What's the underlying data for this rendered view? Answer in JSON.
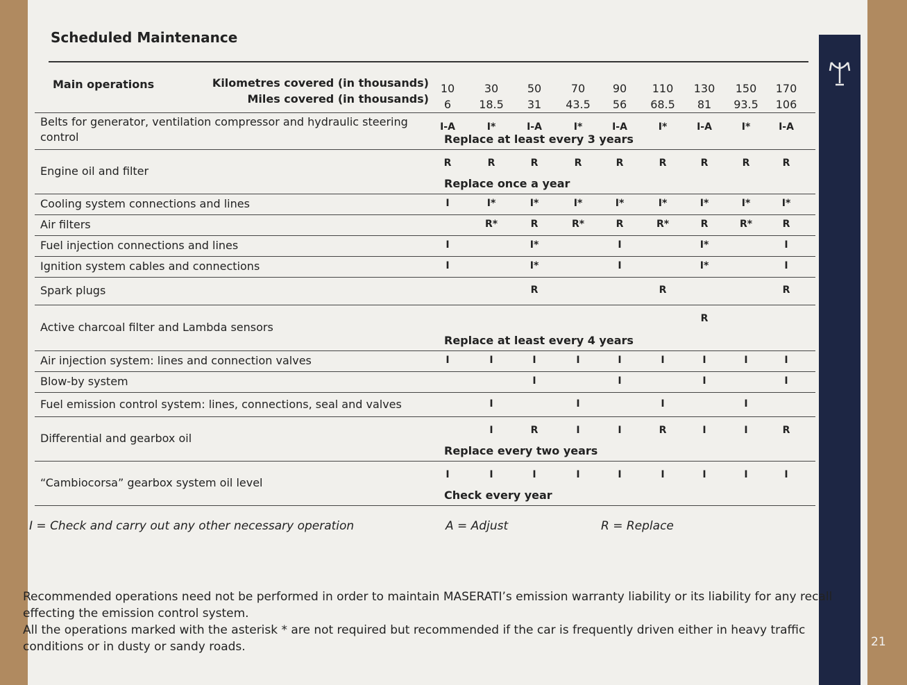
{
  "title": "Scheduled Maintenance",
  "header": {
    "main_operations": "Main operations",
    "km_label": "Kilometres covered (in thousands)",
    "miles_label": "Miles covered (in thousands)",
    "km": [
      10,
      30,
      50,
      70,
      90,
      110,
      130,
      150,
      170
    ],
    "miles": [
      6,
      18.5,
      31,
      43.5,
      56,
      68.5,
      81,
      93.5,
      106
    ]
  },
  "rows": [
    {
      "label": "Belts for generator, ventilation compressor and hydraulic steering control",
      "cells": [
        "I-A",
        "I*",
        "I-A",
        "I*",
        "I-A",
        "I*",
        "I-A",
        "I*",
        "I-A"
      ],
      "note": "Replace at least every 3 years"
    },
    {
      "label": "Engine oil and filter",
      "cells": [
        "R",
        "R",
        "R",
        "R",
        "R",
        "R",
        "R",
        "R",
        "R"
      ],
      "note": "Replace once a year"
    },
    {
      "label": "Cooling system connections and lines",
      "cells": [
        "I",
        "I*",
        "I*",
        "I*",
        "I*",
        "I*",
        "I*",
        "I*",
        "I*"
      ]
    },
    {
      "label": "Air filters",
      "cells": [
        null,
        "R*",
        "R",
        "R*",
        "R",
        "R*",
        "R",
        "R*",
        "R"
      ]
    },
    {
      "label": "Fuel injection connections and lines",
      "cells": [
        "I",
        null,
        "I*",
        null,
        "I",
        null,
        "I*",
        null,
        "I"
      ]
    },
    {
      "label": "Ignition system cables and connections",
      "cells": [
        "I",
        null,
        "I*",
        null,
        "I",
        null,
        "I*",
        null,
        "I"
      ]
    },
    {
      "label": "Spark plugs",
      "cells": [
        null,
        null,
        "R",
        null,
        null,
        "R",
        null,
        null,
        "R"
      ]
    },
    {
      "label": "Active charcoal filter and Lambda sensors",
      "cells": [
        null,
        null,
        null,
        null,
        null,
        null,
        "R",
        null,
        null
      ],
      "note": "Replace at least every 4 years"
    },
    {
      "label": "Air injection system: lines and connection valves",
      "cells": [
        "I",
        "I",
        "I",
        "I",
        "I",
        "I",
        "I",
        "I",
        "I"
      ]
    },
    {
      "label": "Blow-by system",
      "cells": [
        null,
        null,
        "I",
        null,
        "I",
        null,
        "I",
        null,
        "I"
      ]
    },
    {
      "label": "Fuel emission control system: lines, connections, seal and valves",
      "cells": [
        null,
        "I",
        null,
        "I",
        null,
        "I",
        null,
        "I",
        null
      ]
    },
    {
      "label": "Differential and gearbox oil",
      "cells": [
        null,
        "I",
        "R",
        "I",
        "I",
        "R",
        "I",
        "I",
        "R"
      ],
      "note": "Replace every two years"
    },
    {
      "label": "“Cambiocorsa” gearbox system oil level",
      "cells": [
        "I",
        "I",
        "I",
        "I",
        "I",
        "I",
        "I",
        "I",
        "I"
      ],
      "note": "Check every year"
    }
  ],
  "legend": [
    "I = Check and carry out any other necessary operation",
    "A = Adjust",
    "R = Replace"
  ],
  "footnotes": [
    "Recommended operations need not be performed in order to maintain MASERATI’s emission warranty liability or its liability for any recall effecting the emission control system.",
    "All the operations marked with the asterisk * are not required but recommended if the car is frequently driven either in heavy traffic conditions or in dusty or sandy roads."
  ],
  "page_number": "21"
}
